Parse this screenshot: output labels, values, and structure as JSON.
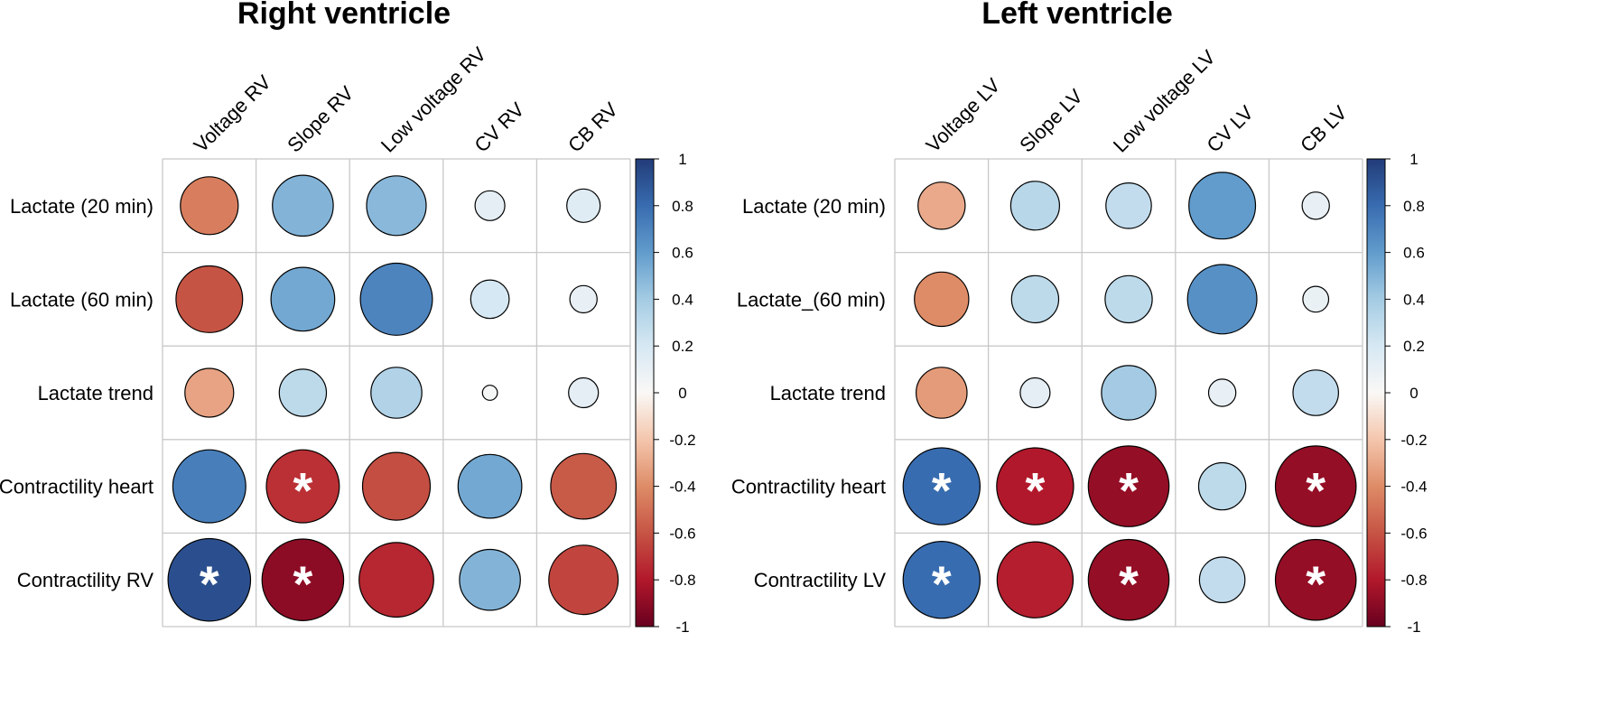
{
  "chart_data": [
    {
      "type": "heatmap",
      "title": "Right ventricle",
      "rows": [
        "Lactate (20 min)",
        "Lactate (60 min)",
        "Lactate trend",
        "Contractility heart",
        "Contractility RV"
      ],
      "columns": [
        "Voltage RV",
        "Slope RV",
        "Low voltage RV",
        "CV RV",
        "CB RV"
      ],
      "values": [
        [
          -0.45,
          0.5,
          0.48,
          0.12,
          0.15
        ],
        [
          -0.6,
          0.55,
          0.7,
          0.2,
          0.1
        ],
        [
          -0.32,
          0.3,
          0.35,
          0.03,
          0.12
        ],
        [
          0.72,
          -0.72,
          -0.62,
          0.55,
          -0.58
        ],
        [
          0.92,
          -0.9,
          -0.75,
          0.5,
          -0.65
        ]
      ],
      "significant": [
        [
          false,
          false,
          false,
          false,
          false
        ],
        [
          false,
          false,
          false,
          false,
          false
        ],
        [
          false,
          false,
          false,
          false,
          false
        ],
        [
          false,
          true,
          false,
          false,
          false
        ],
        [
          true,
          true,
          false,
          false,
          false
        ]
      ],
      "colorbar": {
        "range": [
          -1,
          1
        ],
        "ticks": [
          "1",
          "0.8",
          "0.6",
          "0.4",
          "0.2",
          "0",
          "-0.2",
          "-0.4",
          "-0.6",
          "-0.8",
          "-1"
        ]
      }
    },
    {
      "type": "heatmap",
      "title": "Left ventricle",
      "rows": [
        "Lactate (20 min)",
        "Lactate_(60 min)",
        "Lactate trend",
        "Contractility heart",
        "Contractility LV"
      ],
      "columns": [
        "Voltage LV",
        "Slope LV",
        "Low voltage LV",
        "CV LV",
        "CB LV"
      ],
      "values": [
        [
          -0.3,
          0.32,
          0.28,
          0.6,
          0.1
        ],
        [
          -0.4,
          0.3,
          0.3,
          0.65,
          0.09
        ],
        [
          -0.35,
          0.12,
          0.4,
          0.1,
          0.28
        ],
        [
          0.8,
          -0.8,
          -0.88,
          0.3,
          -0.88
        ],
        [
          0.8,
          -0.78,
          -0.88,
          0.28,
          -0.88
        ]
      ],
      "significant": [
        [
          false,
          false,
          false,
          false,
          false
        ],
        [
          false,
          false,
          false,
          false,
          false
        ],
        [
          false,
          false,
          false,
          false,
          false
        ],
        [
          true,
          true,
          true,
          false,
          true
        ],
        [
          true,
          false,
          true,
          false,
          true
        ]
      ],
      "colorbar": {
        "range": [
          -1,
          1
        ],
        "ticks": [
          "1",
          "0.8",
          "0.6",
          "0.4",
          "0.2",
          "0",
          "-0.2",
          "-0.4",
          "-0.6",
          "-0.8",
          "-1"
        ]
      }
    }
  ],
  "significance_marker": "*"
}
